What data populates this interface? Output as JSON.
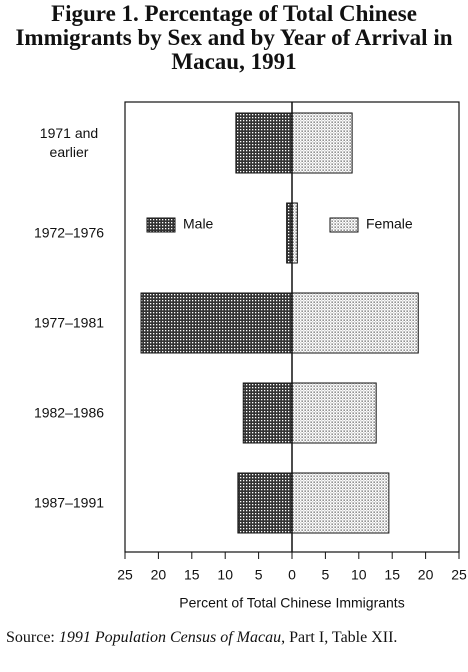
{
  "chart_data": {
    "type": "pyramid",
    "title": "Figure 1. Percentage of Total Chinese Immigrants by Sex and by Year of Arrival in Macau, 1991",
    "categories": [
      "1971 and earlier",
      "1972–1976",
      "1977–1981",
      "1982–1986",
      "1987–1991"
    ],
    "series": [
      {
        "name": "Male",
        "color": "#333333",
        "values": [
          -8.4,
          -0.8,
          -22.6,
          -7.3,
          -8.1
        ]
      },
      {
        "name": "Female",
        "color": "#d4d4d4",
        "values": [
          9.0,
          0.8,
          18.9,
          12.6,
          14.5
        ]
      }
    ],
    "xlabel": "Percent of Total Chinese Immigrants",
    "xlim": [
      -25,
      25
    ],
    "xticks": [
      {
        "value": -25,
        "label": "25"
      },
      {
        "value": -20,
        "label": "20"
      },
      {
        "value": -15,
        "label": "15"
      },
      {
        "value": -10,
        "label": "10"
      },
      {
        "value": -5,
        "label": "5"
      },
      0,
      5,
      10,
      15,
      20,
      25
    ],
    "legend": "center",
    "source": {
      "prefix": "Source:",
      "title": "1991 Population Census of Macau",
      "suffix": ", Part I, Table XII."
    }
  }
}
